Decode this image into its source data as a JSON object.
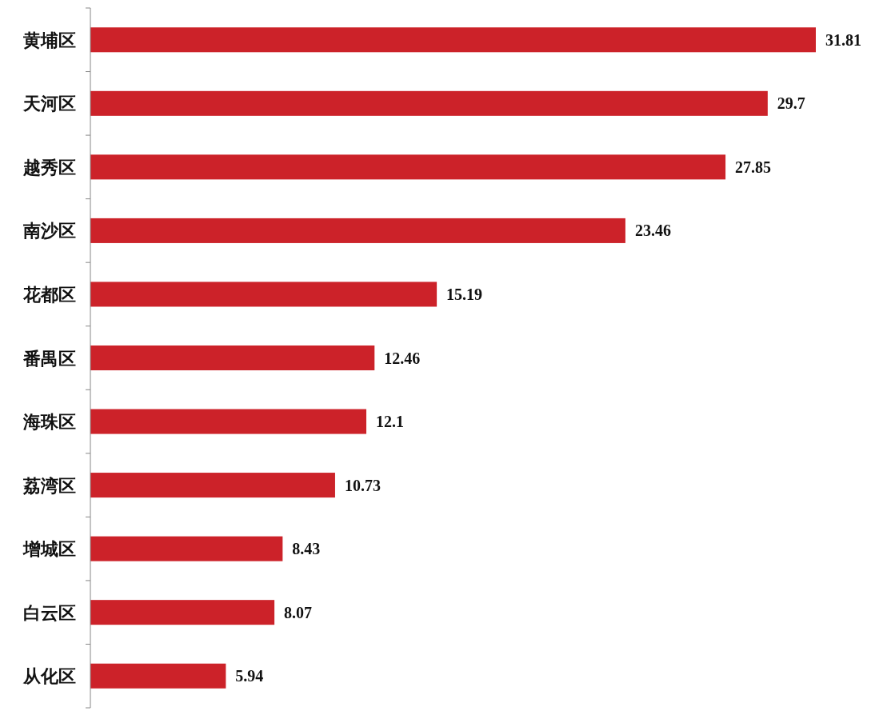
{
  "chart_data": {
    "type": "bar",
    "orientation": "horizontal",
    "data_labels": true,
    "color": "#cc2229",
    "categories": [
      "黄埔区",
      "天河区",
      "越秀区",
      "南沙区",
      "花都区",
      "番禺区",
      "海珠区",
      "荔湾区",
      "增城区",
      "白云区",
      "从化区"
    ],
    "values": [
      31.81,
      29.7,
      27.85,
      23.46,
      15.19,
      12.46,
      12.1,
      10.73,
      8.43,
      8.07,
      5.94
    ]
  }
}
